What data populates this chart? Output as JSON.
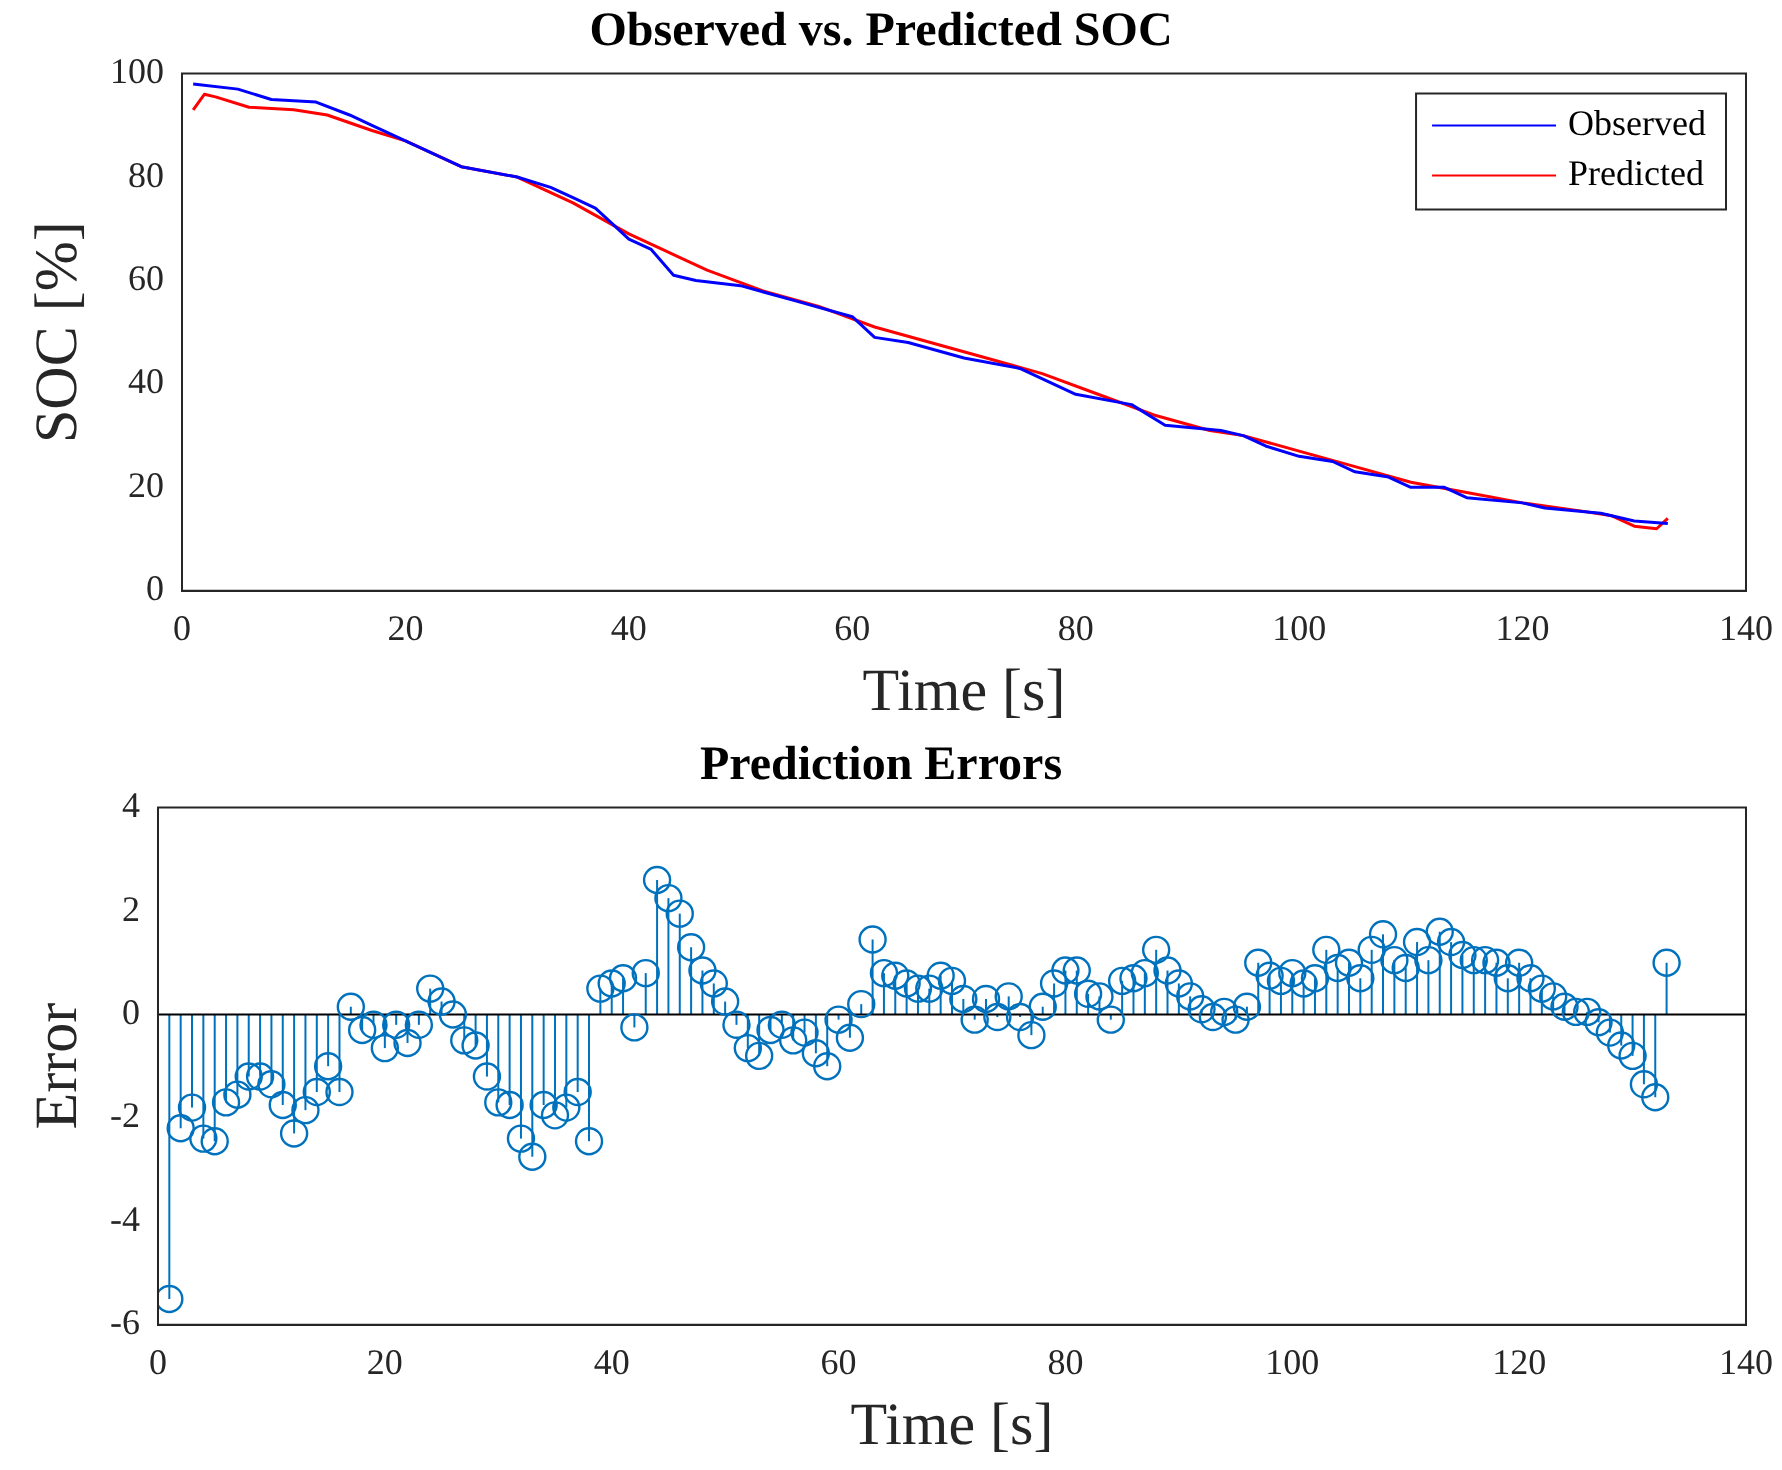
{
  "chart_data": [
    {
      "type": "line",
      "title": "Observed vs. Predicted SOC",
      "xlabel": "Time [s]",
      "ylabel": "SOC [%]",
      "xlim": [
        0,
        140
      ],
      "xticks": [
        0,
        20,
        40,
        60,
        80,
        100,
        120,
        140
      ],
      "ylim": [
        0,
        100
      ],
      "yticks": [
        0,
        20,
        40,
        60,
        80,
        100
      ],
      "grid": false,
      "legend": "top right",
      "series": [
        {
          "name": "Observed",
          "color": "#0000ff",
          "x": [
            1,
            5,
            8,
            12,
            15,
            17,
            20,
            25,
            30,
            33,
            35,
            37,
            38,
            40,
            42,
            44,
            46,
            50,
            55,
            60,
            62,
            65,
            70,
            75,
            80,
            85,
            88,
            93,
            95,
            97,
            100,
            103,
            105,
            108,
            110,
            113,
            115,
            120,
            122,
            127,
            130,
            133
          ],
          "values": [
            98,
            97,
            95,
            94.5,
            92,
            90,
            87,
            82,
            80,
            78,
            76,
            74,
            72,
            68,
            66,
            61,
            60,
            59,
            56,
            53,
            49,
            48,
            45,
            43,
            38,
            36,
            32,
            31,
            30,
            28,
            26,
            25,
            23,
            22,
            20,
            20,
            18,
            17,
            16,
            15,
            13.5,
            13
          ]
        },
        {
          "name": "Predicted",
          "color": "#ff0000",
          "x": [
            1,
            2,
            3,
            6,
            10,
            13,
            17,
            20,
            25,
            30,
            35,
            40,
            43,
            47,
            52,
            57,
            62,
            67,
            72,
            77,
            82,
            87,
            92,
            95,
            100,
            105,
            110,
            115,
            120,
            125,
            128,
            130,
            132,
            133
          ],
          "values": [
            93,
            96,
            95.5,
            93.5,
            93,
            92,
            89,
            87,
            82,
            80,
            75,
            69,
            66,
            62,
            58,
            55,
            51,
            48,
            45,
            42,
            38,
            34,
            31,
            30,
            27,
            24,
            21,
            19,
            17,
            15.5,
            14.5,
            12.5,
            12,
            14
          ]
        }
      ]
    },
    {
      "type": "lollipop",
      "title": "Prediction Errors",
      "xlabel": "Time [s]",
      "ylabel": "Error",
      "xlim": [
        0,
        140
      ],
      "xticks": [
        0,
        20,
        40,
        60,
        80,
        100,
        120,
        140
      ],
      "ylim": [
        -6,
        4
      ],
      "yticks": [
        -6,
        -4,
        -2,
        0,
        2,
        4
      ],
      "grid": false,
      "marker": "circle",
      "color": "#0072bd",
      "ref_lines": [
        {
          "axis": "y",
          "value": 0,
          "color": "#000000"
        }
      ],
      "x": [
        1,
        2,
        3,
        4,
        5,
        6,
        7,
        8,
        9,
        10,
        11,
        12,
        13,
        14,
        15,
        16,
        17,
        18,
        19,
        20,
        21,
        22,
        23,
        24,
        25,
        26,
        27,
        28,
        29,
        30,
        31,
        32,
        33,
        34,
        35,
        36,
        37,
        38,
        39,
        40,
        41,
        42,
        43,
        44,
        45,
        46,
        47,
        48,
        49,
        50,
        51,
        52,
        53,
        54,
        55,
        56,
        57,
        58,
        59,
        60,
        61,
        62,
        63,
        64,
        65,
        66,
        67,
        68,
        69,
        70,
        71,
        72,
        73,
        74,
        75,
        76,
        77,
        78,
        79,
        80,
        81,
        82,
        83,
        84,
        85,
        86,
        87,
        88,
        89,
        90,
        91,
        92,
        93,
        94,
        95,
        96,
        97,
        98,
        99,
        100,
        101,
        102,
        103,
        104,
        105,
        106,
        107,
        108,
        109,
        110,
        111,
        112,
        113,
        114,
        115,
        116,
        117,
        118,
        119,
        120,
        121,
        122,
        123,
        124,
        125,
        126,
        127,
        128,
        129,
        130,
        131,
        132,
        133
      ],
      "values": [
        -5.5,
        -2.2,
        -1.8,
        -2.4,
        -2.45,
        -1.7,
        -1.55,
        -1.2,
        -1.2,
        -1.35,
        -1.75,
        -2.3,
        -1.85,
        -1.5,
        -1.0,
        -1.5,
        0.15,
        -0.3,
        -0.2,
        -0.65,
        -0.2,
        -0.55,
        -0.2,
        0.5,
        0.25,
        0.0,
        -0.5,
        -0.6,
        -1.2,
        -1.7,
        -1.75,
        -2.4,
        -2.75,
        -1.75,
        -1.95,
        -1.8,
        -1.5,
        -2.45,
        0.5,
        0.6,
        0.7,
        -0.25,
        0.8,
        2.6,
        2.25,
        1.95,
        1.3,
        0.85,
        0.6,
        0.25,
        -0.2,
        -0.65,
        -0.8,
        -0.3,
        -0.2,
        -0.5,
        -0.35,
        -0.75,
        -1.0,
        -0.1,
        -0.45,
        0.2,
        1.45,
        0.8,
        0.75,
        0.6,
        0.5,
        0.5,
        0.75,
        0.65,
        0.3,
        -0.1,
        0.3,
        -0.05,
        0.35,
        -0.05,
        -0.4,
        0.15,
        0.6,
        0.85,
        0.85,
        0.4,
        0.35,
        -0.1,
        0.65,
        0.7,
        0.8,
        1.25,
        0.85,
        0.6,
        0.35,
        0.1,
        -0.05,
        0.05,
        -0.1,
        0.15,
        1.0,
        0.75,
        0.65,
        0.8,
        0.6,
        0.7,
        1.25,
        0.9,
        1.0,
        0.7,
        1.25,
        1.55,
        1.05,
        0.9,
        1.4,
        1.05,
        1.6,
        1.4,
        1.15,
        1.05,
        1.05,
        1.0,
        0.7,
        1.0,
        0.7,
        0.5,
        0.35,
        0.15,
        0.05,
        0.05,
        -0.15,
        -0.35,
        -0.6,
        -0.8,
        -1.35,
        -1.6,
        1.0
      ]
    }
  ]
}
